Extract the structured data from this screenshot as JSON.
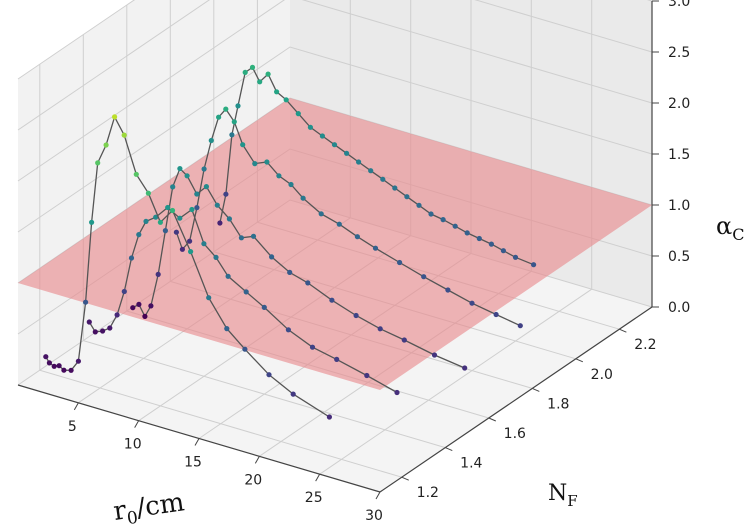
{
  "chart_data": {
    "type": "line",
    "projection": "3d",
    "title": "",
    "xlabel": "r_0/cm",
    "ylabel": "N_F",
    "zlabel": "α_C",
    "xlim": [
      0,
      30
    ],
    "ylim": [
      1.1,
      2.35
    ],
    "zlim": [
      0,
      3
    ],
    "x_ticks": [
      "5",
      "10",
      "15",
      "20",
      "25",
      "30"
    ],
    "y_ticks": [
      "1.2",
      "1.4",
      "1.6",
      "1.8",
      "2.0",
      "2.2"
    ],
    "z_ticks": [
      "0.0",
      "0.5",
      "1.0",
      "1.5",
      "2.0",
      "2.5",
      "3.0"
    ],
    "plane": {
      "z": 1.0,
      "color": "#e8898c"
    },
    "colormap": "viridis",
    "grid": true,
    "series": [
      {
        "y": 1.2,
        "x": [
          0.5,
          0.8,
          1.2,
          1.6,
          2.0,
          2.6,
          3.2,
          3.8,
          4.3,
          4.8,
          5.5,
          6.2,
          7.0,
          8.0,
          9.0,
          10.0,
          11.0,
          12.5,
          14.0,
          15.5,
          17.0,
          19.0,
          21.0,
          24.0
        ],
        "z": [
          0.15,
          0.1,
          0.08,
          0.1,
          0.07,
          0.09,
          0.2,
          0.8,
          1.6,
          2.2,
          2.4,
          2.7,
          2.55,
          2.2,
          2.05,
          1.8,
          1.95,
          1.6,
          1.2,
          0.95,
          0.8,
          0.62,
          0.5,
          0.38
        ]
      },
      {
        "y": 1.4,
        "x": [
          0.5,
          1.0,
          1.6,
          2.2,
          2.8,
          3.4,
          4.0,
          4.6,
          5.2,
          6.0,
          7.0,
          8.0,
          9.0,
          10.0,
          11.0,
          12.0,
          13.5,
          15.0,
          17.0,
          19.0,
          21.0,
          23.5,
          26.0
        ],
        "z": [
          0.2,
          0.12,
          0.15,
          0.2,
          0.35,
          0.6,
          0.95,
          1.2,
          1.35,
          1.42,
          1.55,
          1.48,
          1.6,
          1.3,
          1.2,
          1.05,
          0.95,
          0.85,
          0.7,
          0.6,
          0.55,
          0.48,
          0.4
        ]
      },
      {
        "y": 1.6,
        "x": [
          0.5,
          1.0,
          1.5,
          2.0,
          2.6,
          3.2,
          3.8,
          4.4,
          5.0,
          5.8,
          6.6,
          7.5,
          8.5,
          9.5,
          10.5,
          12.0,
          13.5,
          15.0,
          17.0,
          19.0,
          21.0,
          23.0,
          25.5,
          28.0
        ],
        "z": [
          0.05,
          0.1,
          0.0,
          0.12,
          0.45,
          0.9,
          1.35,
          1.55,
          1.5,
          1.35,
          1.45,
          1.3,
          1.2,
          1.05,
          1.1,
          0.95,
          0.85,
          0.8,
          0.7,
          0.62,
          0.56,
          0.52,
          0.46,
          0.42
        ]
      },
      {
        "y": 1.8,
        "x": [
          0.5,
          1.0,
          1.6,
          2.2,
          2.8,
          3.4,
          4.0,
          4.6,
          5.3,
          6.0,
          7.0,
          8.0,
          9.0,
          10.0,
          11.0,
          12.5,
          14.0,
          15.5,
          17.0,
          19.0,
          21.0,
          23.0,
          25.0,
          27.0,
          29.0
        ],
        "z": [
          0.5,
          0.35,
          0.45,
          0.8,
          1.2,
          1.5,
          1.75,
          1.85,
          1.75,
          1.55,
          1.4,
          1.45,
          1.35,
          1.3,
          1.2,
          1.1,
          1.05,
          0.98,
          0.92,
          0.85,
          0.78,
          0.72,
          0.66,
          0.62,
          0.58
        ]
      },
      {
        "y": 2.0,
        "x": [
          0.5,
          1.0,
          1.5,
          2.0,
          2.6,
          3.2,
          3.8,
          4.5,
          5.2,
          6.0,
          7.0,
          8.0,
          9.0,
          10.0,
          11.0,
          12.0,
          13.0,
          14.0,
          15.0,
          16.0,
          17.0,
          18.0,
          19.0,
          20.0,
          21.0,
          22.0,
          23.0,
          24.0,
          25.0,
          26.5
        ],
        "z": [
          0.3,
          0.6,
          1.2,
          1.5,
          1.85,
          1.92,
          1.8,
          1.9,
          1.75,
          1.7,
          1.6,
          1.5,
          1.45,
          1.4,
          1.35,
          1.3,
          1.25,
          1.2,
          1.15,
          1.1,
          1.05,
          1.0,
          0.98,
          0.95,
          0.92,
          0.9,
          0.88,
          0.85,
          0.82,
          0.8
        ]
      }
    ]
  }
}
